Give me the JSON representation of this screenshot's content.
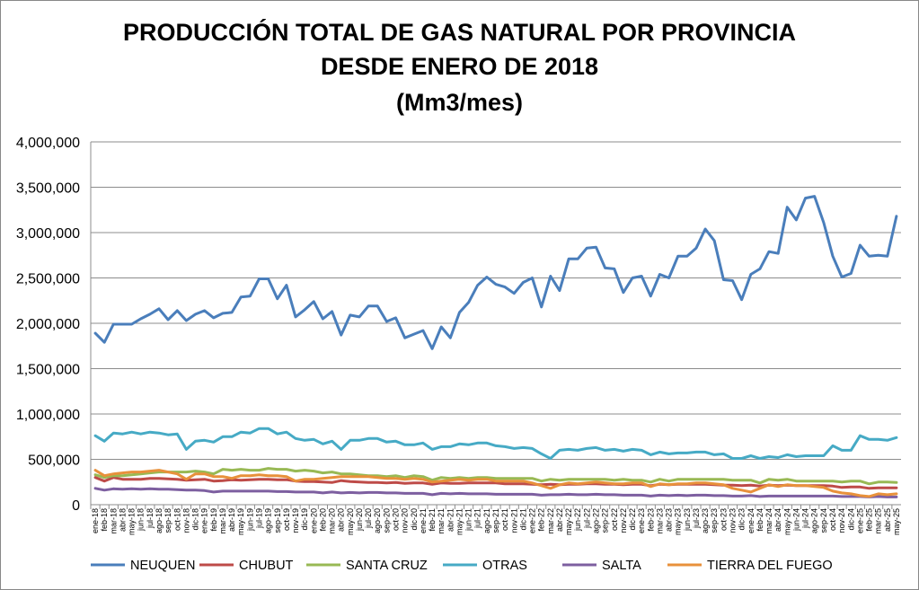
{
  "chart_data": {
    "type": "line",
    "title_lines": [
      "PRODUCCIÓN TOTAL DE GAS NATURAL POR PROVINCIA",
      "DESDE ENERO DE 2018",
      "(Mm3/mes)"
    ],
    "xlabel": "",
    "ylabel": "",
    "ylim": [
      0,
      4000000
    ],
    "yticks": [
      "4,000,000",
      "3,500,000",
      "3,000,000",
      "2,500,000",
      "2,000,000",
      "1,500,000",
      "1,000,000",
      "500,000",
      "0"
    ],
    "ytick_values": [
      4000000,
      3500000,
      3000000,
      2500000,
      2000000,
      1500000,
      1000000,
      500000,
      0
    ],
    "grid": true,
    "legend_position": "bottom",
    "categories": [
      "ene-18",
      "feb-18",
      "mar-18",
      "abr-18",
      "may-18",
      "jun-18",
      "jul-18",
      "ago-18",
      "sep-18",
      "oct-18",
      "nov-18",
      "dic-18",
      "ene-19",
      "feb-19",
      "mar-19",
      "abr-19",
      "may-19",
      "jun-19",
      "jul-19",
      "ago-19",
      "sep-19",
      "oct-19",
      "nov-19",
      "dic-19",
      "ene-20",
      "feb-20",
      "mar-20",
      "abr-20",
      "may-20",
      "jun-20",
      "jul-20",
      "ago-20",
      "sep-20",
      "oct-20",
      "nov-20",
      "dic-20",
      "ene-21",
      "feb-21",
      "mar-21",
      "abr-21",
      "may-21",
      "jun-21",
      "jul-21",
      "ago-21",
      "sep-21",
      "oct-21",
      "nov-21",
      "dic-21",
      "ene-22",
      "feb-22",
      "mar-22",
      "abr-22",
      "may-22",
      "jun-22",
      "jul-22",
      "ago-22",
      "sep-22",
      "oct-22",
      "nov-22",
      "dic-22",
      "ene-23",
      "feb-23",
      "mar-23",
      "abr-23",
      "may-23",
      "jun-23",
      "jul-23",
      "ago-23",
      "sep-23",
      "oct-23",
      "nov-23",
      "dic-23",
      "ene-24",
      "feb-24",
      "mar-24",
      "abr-24",
      "may-24",
      "jun-24",
      "jul-24",
      "ago-24",
      "sep-24",
      "oct-24",
      "nov-24",
      "dic-24",
      "ene-25",
      "feb-25",
      "mar-25",
      "abr-25",
      "may-25"
    ],
    "series": [
      {
        "name": "NEUQUEN",
        "color": "#4a7ebb",
        "values": [
          1890000,
          1790000,
          1990000,
          1990000,
          1990000,
          2050000,
          2100000,
          2160000,
          2040000,
          2140000,
          2030000,
          2100000,
          2140000,
          2060000,
          2110000,
          2120000,
          2290000,
          2300000,
          2490000,
          2490000,
          2270000,
          2420000,
          2070000,
          2150000,
          2240000,
          2050000,
          2130000,
          1870000,
          2090000,
          2070000,
          2190000,
          2190000,
          2020000,
          2060000,
          1840000,
          1880000,
          1920000,
          1720000,
          1960000,
          1840000,
          2120000,
          2230000,
          2420000,
          2510000,
          2430000,
          2400000,
          2330000,
          2450000,
          2500000,
          2180000,
          2520000,
          2360000,
          2710000,
          2710000,
          2830000,
          2840000,
          2610000,
          2600000,
          2340000,
          2500000,
          2520000,
          2300000,
          2540000,
          2500000,
          2740000,
          2740000,
          2830000,
          3040000,
          2910000,
          2480000,
          2470000,
          2260000,
          2540000,
          2600000,
          2790000,
          2770000,
          3280000,
          3140000,
          3380000,
          3400000,
          3110000,
          2740000,
          2510000,
          2550000,
          2860000,
          2740000,
          2750000,
          2740000,
          3180000
        ]
      },
      {
        "name": "CHUBUT",
        "color": "#be4b48",
        "values": [
          300000,
          260000,
          300000,
          280000,
          280000,
          280000,
          290000,
          290000,
          285000,
          280000,
          270000,
          275000,
          280000,
          260000,
          265000,
          275000,
          270000,
          275000,
          280000,
          280000,
          275000,
          275000,
          260000,
          255000,
          255000,
          250000,
          245000,
          265000,
          255000,
          250000,
          245000,
          245000,
          240000,
          245000,
          235000,
          240000,
          240000,
          225000,
          240000,
          235000,
          235000,
          240000,
          240000,
          240000,
          240000,
          230000,
          230000,
          230000,
          225000,
          220000,
          225000,
          220000,
          225000,
          225000,
          230000,
          230000,
          225000,
          225000,
          220000,
          225000,
          225000,
          210000,
          225000,
          220000,
          225000,
          225000,
          225000,
          225000,
          220000,
          215000,
          215000,
          210000,
          215000,
          205000,
          215000,
          210000,
          215000,
          210000,
          210000,
          210000,
          210000,
          205000,
          190000,
          195000,
          195000,
          180000,
          185000,
          185000,
          185000
        ]
      },
      {
        "name": "SANTA CRUZ",
        "color": "#98b954",
        "values": [
          330000,
          300000,
          320000,
          320000,
          330000,
          340000,
          350000,
          360000,
          360000,
          360000,
          360000,
          370000,
          360000,
          340000,
          390000,
          380000,
          390000,
          380000,
          380000,
          400000,
          390000,
          390000,
          370000,
          380000,
          370000,
          350000,
          360000,
          340000,
          340000,
          330000,
          320000,
          320000,
          310000,
          320000,
          300000,
          320000,
          310000,
          270000,
          300000,
          290000,
          300000,
          290000,
          300000,
          300000,
          290000,
          290000,
          290000,
          290000,
          290000,
          260000,
          280000,
          270000,
          280000,
          280000,
          280000,
          280000,
          280000,
          270000,
          280000,
          270000,
          270000,
          250000,
          280000,
          260000,
          280000,
          280000,
          280000,
          280000,
          280000,
          280000,
          270000,
          270000,
          270000,
          240000,
          280000,
          270000,
          280000,
          260000,
          260000,
          260000,
          260000,
          260000,
          250000,
          260000,
          260000,
          230000,
          250000,
          250000,
          245000
        ]
      },
      {
        "name": "OTRAS",
        "color": "#46aac5",
        "values": [
          760000,
          700000,
          790000,
          780000,
          800000,
          780000,
          800000,
          790000,
          770000,
          780000,
          610000,
          700000,
          710000,
          690000,
          750000,
          750000,
          800000,
          790000,
          840000,
          840000,
          780000,
          800000,
          730000,
          710000,
          720000,
          670000,
          700000,
          610000,
          710000,
          710000,
          730000,
          730000,
          690000,
          700000,
          660000,
          660000,
          680000,
          610000,
          640000,
          640000,
          670000,
          660000,
          680000,
          680000,
          650000,
          640000,
          620000,
          630000,
          620000,
          560000,
          510000,
          600000,
          610000,
          600000,
          620000,
          630000,
          600000,
          610000,
          590000,
          610000,
          600000,
          550000,
          580000,
          560000,
          570000,
          570000,
          580000,
          580000,
          550000,
          560000,
          510000,
          510000,
          540000,
          510000,
          530000,
          520000,
          550000,
          530000,
          540000,
          540000,
          540000,
          650000,
          600000,
          600000,
          760000,
          720000,
          720000,
          710000,
          740000
        ]
      },
      {
        "name": "SALTA",
        "color": "#7d5fa0",
        "values": [
          180000,
          160000,
          175000,
          170000,
          175000,
          170000,
          175000,
          170000,
          170000,
          165000,
          160000,
          160000,
          155000,
          140000,
          150000,
          150000,
          150000,
          150000,
          150000,
          150000,
          145000,
          145000,
          140000,
          140000,
          140000,
          130000,
          140000,
          130000,
          135000,
          130000,
          135000,
          135000,
          130000,
          130000,
          125000,
          125000,
          125000,
          110000,
          125000,
          120000,
          125000,
          120000,
          120000,
          120000,
          115000,
          115000,
          115000,
          115000,
          115000,
          105000,
          110000,
          110000,
          115000,
          110000,
          110000,
          115000,
          110000,
          110000,
          105000,
          105000,
          105000,
          95000,
          105000,
          100000,
          105000,
          100000,
          105000,
          105000,
          100000,
          100000,
          95000,
          95000,
          100000,
          90000,
          95000,
          95000,
          95000,
          95000,
          95000,
          95000,
          95000,
          95000,
          90000,
          90000,
          90000,
          85000,
          90000,
          85000,
          85000
        ]
      },
      {
        "name": "TIERRA DEL FUEGO",
        "color": "#e8913b",
        "values": [
          380000,
          320000,
          340000,
          350000,
          360000,
          360000,
          370000,
          380000,
          360000,
          340000,
          280000,
          340000,
          340000,
          310000,
          310000,
          290000,
          320000,
          320000,
          330000,
          320000,
          320000,
          310000,
          260000,
          280000,
          280000,
          290000,
          300000,
          310000,
          310000,
          310000,
          310000,
          300000,
          290000,
          290000,
          280000,
          290000,
          280000,
          250000,
          260000,
          270000,
          280000,
          270000,
          280000,
          280000,
          260000,
          260000,
          260000,
          260000,
          240000,
          210000,
          180000,
          220000,
          240000,
          230000,
          240000,
          250000,
          240000,
          230000,
          230000,
          240000,
          240000,
          200000,
          230000,
          220000,
          230000,
          230000,
          240000,
          240000,
          230000,
          220000,
          180000,
          160000,
          140000,
          180000,
          220000,
          200000,
          220000,
          210000,
          210000,
          200000,
          190000,
          150000,
          130000,
          120000,
          100000,
          90000,
          120000,
          110000,
          120000
        ]
      }
    ]
  }
}
